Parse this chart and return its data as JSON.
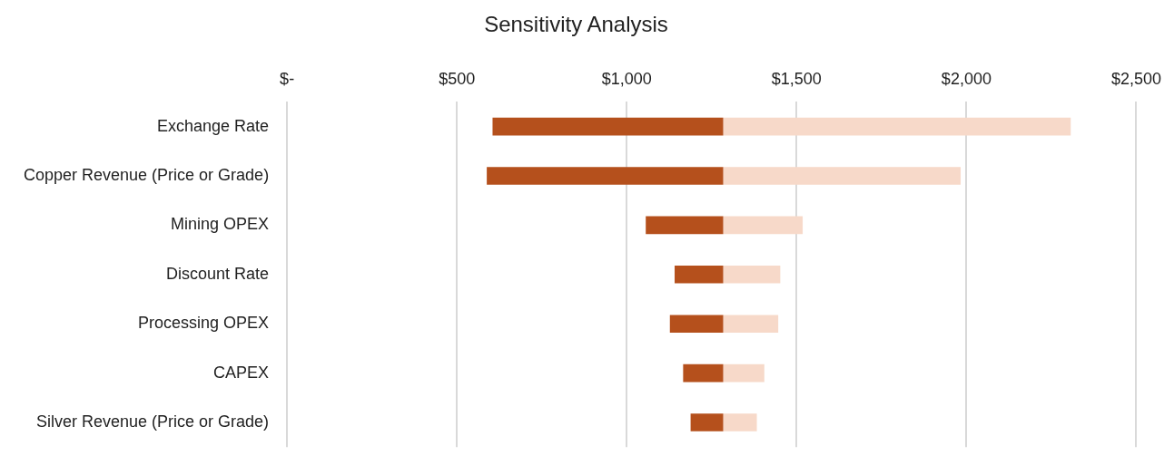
{
  "chart_data": {
    "type": "bar",
    "orientation": "horizontal",
    "title": "Sensitivity Analysis",
    "categories": [
      "Exchange Rate",
      "Copper Revenue (Price or Grade)",
      "Mining OPEX",
      "Discount Rate",
      "Processing OPEX",
      "CAPEX",
      "Silver Revenue (Price or Grade)"
    ],
    "series": [
      {
        "color": "#b5501c",
        "base": [
          605,
          588,
          1056,
          1141,
          1127,
          1166,
          1188
        ],
        "values": [
          679,
          696,
          228,
          143,
          157,
          118,
          96
        ]
      },
      {
        "color": "#f7d9c9",
        "base": [
          1284,
          1284,
          1284,
          1284,
          1284,
          1284,
          1284
        ],
        "values": [
          1023,
          699,
          234,
          168,
          162,
          121,
          99
        ]
      }
    ],
    "xlim": [
      0,
      2500
    ],
    "xticks": [
      {
        "value": 0,
        "label": "$-"
      },
      {
        "value": 500,
        "label": "$500"
      },
      {
        "value": 1000,
        "label": "$1,000"
      },
      {
        "value": 1500,
        "label": "$1,500"
      },
      {
        "value": 2000,
        "label": "$2,000"
      },
      {
        "value": 2500,
        "label": "$2,500"
      }
    ],
    "grid": "x",
    "legend": false
  }
}
